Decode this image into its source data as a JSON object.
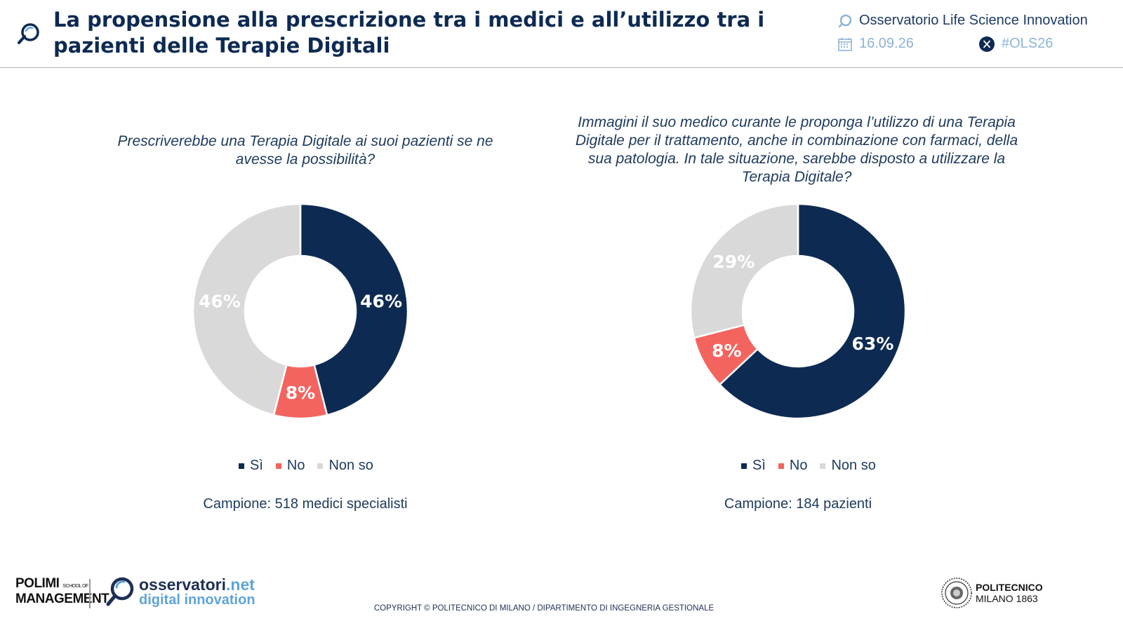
{
  "header": {
    "title": "La propensione alla prescrizione tra i medici e all’utilizzo tra i pazienti delle Terapie Digitali",
    "observatory": "Osservatorio Life Science Innovation",
    "date": "16.09.26",
    "hashtag": "#OLS26"
  },
  "colors": {
    "si": "#0d2a52",
    "no": "#f4645f",
    "nonso": "#d9d9d9",
    "accent": "#8db3d6"
  },
  "chart_data": [
    {
      "type": "pie",
      "title": "Prescriverebbe una Terapia Digitale ai suoi pazienti se ne avesse la possibilità?",
      "categories": [
        "Sì",
        "No",
        "Non so"
      ],
      "values": [
        46,
        8,
        46
      ],
      "labels": [
        "46%",
        "8%",
        "46%"
      ],
      "legend": "bottom",
      "sample": "Campione: 518 medici specialisti"
    },
    {
      "type": "pie",
      "title": "Immagini il suo medico curante le proponga l’utilizzo di una Terapia Digitale per il trattamento, anche in combinazione con farmaci, della sua patologia. In tale situazione, sarebbe disposto a utilizzare la Terapia Digitale?",
      "categories": [
        "Sì",
        "No",
        "Non so"
      ],
      "values": [
        63,
        8,
        29
      ],
      "labels": [
        "63%",
        "8%",
        "29%"
      ],
      "legend": "bottom",
      "sample": "Campione: 184 pazienti"
    }
  ],
  "footer": {
    "polimi_line1": "POLIMI",
    "polimi_school": "SCHOOL OF",
    "polimi_line2": "MANAGEMENT",
    "osservatori_main": "osservatori",
    "osservatori_net": ".net",
    "osservatori_sub": "digital innovation",
    "copyright": "COPYRIGHT © POLITECNICO DI MILANO / DIPARTIMENTO DI INGEGNERIA GESTIONALE",
    "politecnico_line1": "POLITECNICO",
    "politecnico_line2": "MILANO 1863"
  }
}
